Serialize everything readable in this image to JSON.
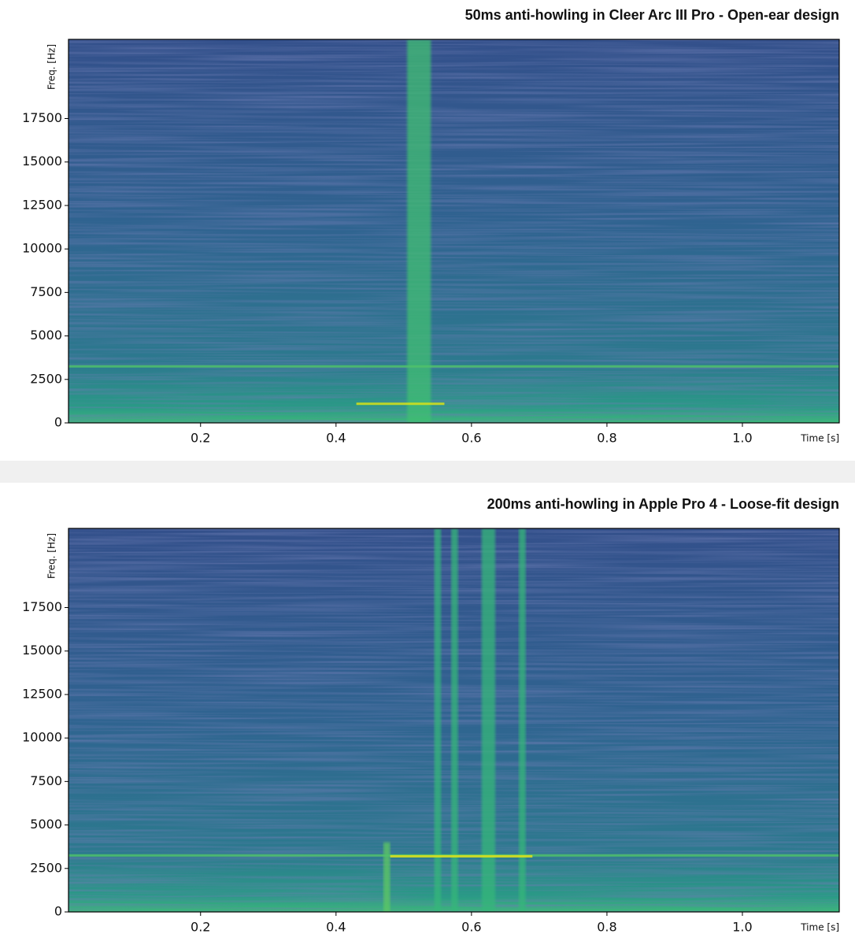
{
  "chart_data": [
    {
      "type": "spectrogram",
      "title": "50ms anti-howling in Cleer Arc III Pro - Open-ear design",
      "x_label": "Time [s]",
      "y_label": "Freq. [Hz]",
      "xlim": [
        0.005,
        1.143
      ],
      "ylim": [
        0,
        22050
      ],
      "xticks": [
        0.2,
        0.4,
        0.6,
        0.8,
        {
          "value": 1,
          "label": "1.0"
        }
      ],
      "yticks": [
        0,
        2500,
        5000,
        7500,
        10000,
        12500,
        15000,
        17500
      ],
      "bands": [
        {
          "x": [
            0.505,
            0.54
          ],
          "y": [
            0,
            22050
          ],
          "color": "#3fbf72"
        }
      ],
      "lines": [
        {
          "x": [
            0.005,
            1.143
          ],
          "y": 3250,
          "color": "#4fc16b"
        },
        {
          "x": [
            0.43,
            0.56
          ],
          "y": 1100,
          "color": "#d8e219"
        }
      ]
    },
    {
      "type": "spectrogram",
      "title": "200ms anti-howling in Apple Pro 4 - Loose-fit design",
      "x_label": "Time [s]",
      "y_label": "Freq. [Hz]",
      "xlim": [
        0.005,
        1.143
      ],
      "ylim": [
        0,
        22050
      ],
      "xticks": [
        0.2,
        0.4,
        0.6,
        0.8,
        {
          "value": 1,
          "label": "1.0"
        }
      ],
      "yticks": [
        0,
        2500,
        5000,
        7500,
        10000,
        12500,
        15000,
        17500
      ],
      "bands": [
        {
          "x": [
            0.47,
            0.48
          ],
          "y": [
            0,
            4000
          ],
          "color": "#5ec962"
        },
        {
          "x": [
            0.545,
            0.555
          ],
          "y": [
            0,
            22050
          ],
          "color": "#35b779"
        },
        {
          "x": [
            0.57,
            0.58
          ],
          "y": [
            0,
            22050
          ],
          "color": "#35b779"
        },
        {
          "x": [
            0.615,
            0.635
          ],
          "y": [
            0,
            22050
          ],
          "color": "#35b779"
        },
        {
          "x": [
            0.67,
            0.68
          ],
          "y": [
            0,
            22050
          ],
          "color": "#35b779"
        }
      ],
      "lines": [
        {
          "x": [
            0.005,
            1.143
          ],
          "y": 3250,
          "color": "#4fc16b"
        },
        {
          "x": [
            0.48,
            0.69
          ],
          "y": 3200,
          "color": "#e3e418"
        }
      ]
    }
  ]
}
